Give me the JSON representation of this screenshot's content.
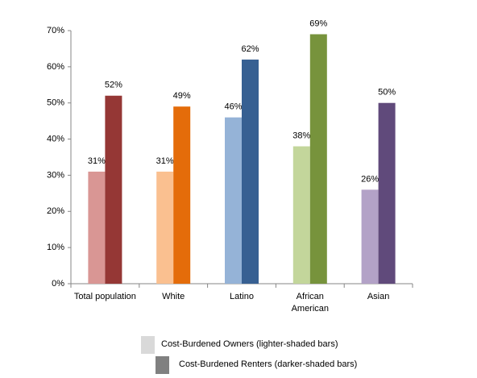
{
  "chart_data": {
    "type": "bar",
    "categories": [
      "Total population",
      "White",
      "Latino",
      "African American",
      "Asian"
    ],
    "series": [
      {
        "name": "Cost-Burdened Owners (lighter-shaded bars)",
        "color": "#d9d9d9",
        "colors": [
          "#d99694",
          "#fac090",
          "#95b3d7",
          "#c3d69b",
          "#b3a2c7"
        ],
        "values": [
          31,
          31,
          46,
          38,
          26
        ],
        "value_labels": [
          "31%",
          "31%",
          "46%",
          "38%",
          "26%"
        ]
      },
      {
        "name": "Cost-Burdened Renters (darker-shaded bars)",
        "color": "#808080",
        "colors": [
          "#953735",
          "#e46c0a",
          "#376092",
          "#77933c",
          "#604a7b"
        ],
        "values": [
          52,
          49,
          62,
          69,
          50
        ],
        "value_labels": [
          "52%",
          "49%",
          "62%",
          "69%",
          "50%"
        ]
      }
    ],
    "ylim": [
      0,
      70
    ],
    "yticks": [
      {
        "value": 0,
        "label": "0%"
      },
      {
        "value": 10,
        "label": "10%"
      },
      {
        "value": 20,
        "label": "20%"
      },
      {
        "value": 30,
        "label": "30%"
      },
      {
        "value": 40,
        "label": "40%"
      },
      {
        "value": 50,
        "label": "50%"
      },
      {
        "value": 60,
        "label": "60%"
      },
      {
        "value": 70,
        "label": "70%"
      }
    ],
    "grid": false
  }
}
